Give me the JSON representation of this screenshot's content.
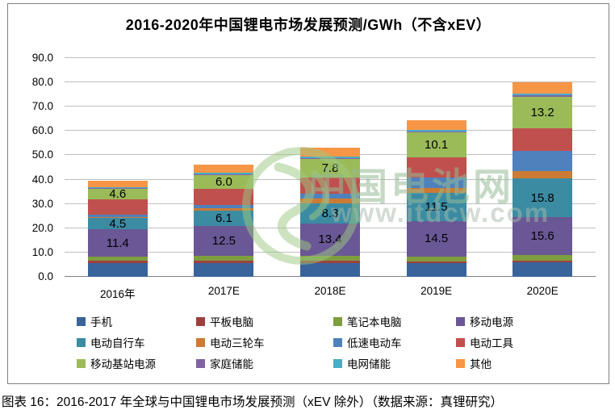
{
  "header": {
    "title": "2016-2020年中国锂电市场发展预测/GWh（不含xEV）"
  },
  "caption": "图表 16：2016-2017 年全球与中国锂电市场发展预测（xEV 除外）（数据来源：真锂研究）",
  "watermark": {
    "site_name": "中国电池网",
    "site_url": "www.itdcw.com",
    "color": "#9DC983"
  },
  "chart_data": {
    "type": "bar",
    "stacked": true,
    "title": "2016-2020年中国锂电市场发展预测/GWh（不含xEV）",
    "unit": "GWh",
    "categories": [
      "2016年",
      "2017E",
      "2018E",
      "2019E",
      "2020E"
    ],
    "ylim": [
      0,
      90
    ],
    "ytick_step": 10,
    "yticks": [
      "0.0",
      "10.0",
      "20.0",
      "30.0",
      "40.0",
      "50.0",
      "60.0",
      "70.0",
      "80.0",
      "90.0"
    ],
    "grid": true,
    "legend_position": "bottom",
    "labeled_series": [
      "移动电源",
      "电动自行车",
      "移动基站电源"
    ],
    "series": [
      {
        "name": "手机",
        "color": "#38649B",
        "labeled": false,
        "values": [
          5.5,
          5.6,
          5.6,
          5.6,
          6.0
        ]
      },
      {
        "name": "平板电脑",
        "color": "#9E413E",
        "labeled": false,
        "values": [
          1.2,
          0.9,
          1.0,
          0.8,
          0.8
        ]
      },
      {
        "name": "笔记本电脑",
        "color": "#7E9D3F",
        "labeled": false,
        "values": [
          1.5,
          2.0,
          2.0,
          2.0,
          2.2
        ]
      },
      {
        "name": "移动电源",
        "color": "#6A5795",
        "labeled": true,
        "values": [
          11.4,
          12.5,
          13.4,
          14.5,
          15.6
        ]
      },
      {
        "name": "电动自行车",
        "color": "#3B8CA3",
        "labeled": true,
        "values": [
          4.5,
          6.1,
          8.3,
          11.5,
          15.8
        ]
      },
      {
        "name": "电动三轮车",
        "color": "#CD7B34",
        "labeled": false,
        "values": [
          0.6,
          1.0,
          2.0,
          2.0,
          3.0
        ]
      },
      {
        "name": "低速电动车",
        "color": "#4F81BD",
        "labeled": false,
        "values": [
          0.9,
          1.5,
          2.0,
          4.6,
          8.3
        ]
      },
      {
        "name": "电动工具",
        "color": "#C0504D",
        "labeled": false,
        "values": [
          6.2,
          6.5,
          6.5,
          8.3,
          9.3
        ]
      },
      {
        "name": "移动基站电源",
        "color": "#9BBB59",
        "labeled": true,
        "values": [
          4.6,
          6.0,
          7.8,
          10.1,
          13.2
        ]
      },
      {
        "name": "家庭储能",
        "color": "#8064A2",
        "labeled": false,
        "values": [
          0.1,
          0.2,
          0.3,
          0.4,
          0.5
        ]
      },
      {
        "name": "电网储能",
        "color": "#4BACC6",
        "labeled": false,
        "values": [
          0.4,
          0.5,
          0.5,
          0.7,
          0.8
        ]
      },
      {
        "name": "其他",
        "color": "#F79646",
        "labeled": false,
        "values": [
          2.7,
          3.4,
          3.8,
          3.8,
          4.5
        ]
      }
    ]
  }
}
